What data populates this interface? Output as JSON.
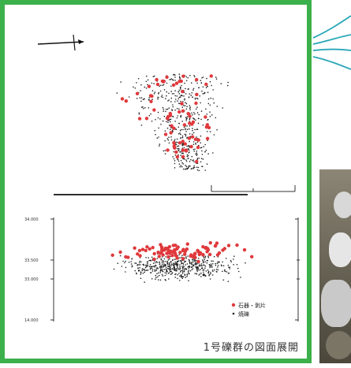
{
  "caption": "1号礫群の図面展開",
  "elevation_axis": {
    "ticks": [
      "34.000",
      "33.500",
      "33.000",
      "14.000"
    ]
  },
  "legend": {
    "stone_tools": {
      "label": "石器・剥片",
      "color": "#e0393c"
    },
    "burnt_stones": {
      "label": "焼礫",
      "color": "#222222"
    }
  },
  "colors": {
    "frame": "#3cb04b",
    "connector": "#2aa7b8"
  },
  "icons": [
    "north-arrow-icon",
    "scale-bar"
  ]
}
